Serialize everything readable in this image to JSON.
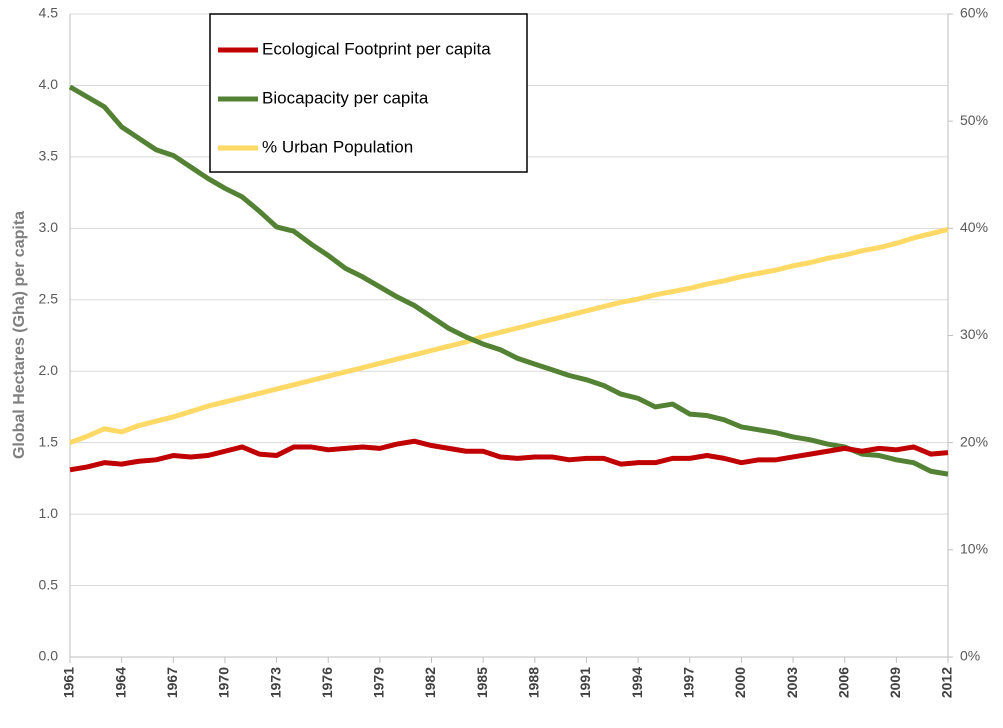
{
  "chart_data": {
    "type": "line",
    "y_label": "Global Hectares (Gha) per capita",
    "x": [
      1961,
      1962,
      1963,
      1964,
      1965,
      1966,
      1967,
      1968,
      1969,
      1970,
      1971,
      1972,
      1973,
      1974,
      1975,
      1976,
      1977,
      1978,
      1979,
      1980,
      1981,
      1982,
      1983,
      1984,
      1985,
      1986,
      1987,
      1988,
      1989,
      1990,
      1991,
      1992,
      1993,
      1994,
      1995,
      1996,
      1997,
      1998,
      1999,
      2000,
      2001,
      2002,
      2003,
      2004,
      2005,
      2006,
      2007,
      2008,
      2009,
      2010,
      2011,
      2012
    ],
    "xlim": [
      1961,
      2012
    ],
    "xticks": [
      1961,
      1964,
      1967,
      1970,
      1973,
      1976,
      1979,
      1982,
      1985,
      1988,
      1991,
      1994,
      1997,
      2000,
      2003,
      2006,
      2009,
      2012
    ],
    "ylim": [
      0,
      4.5
    ],
    "yticks": [
      {
        "value": 0,
        "label": "0.0"
      },
      0.5,
      {
        "value": 1,
        "label": "1.0"
      },
      1.5,
      {
        "value": 2,
        "label": "2.0"
      },
      2.5,
      {
        "value": 3,
        "label": "3.0"
      },
      3.5,
      {
        "value": 4,
        "label": "4.0"
      },
      4.5
    ],
    "y2lim": [
      0,
      60
    ],
    "y2ticks": [
      {
        "value": 0,
        "label": "0%"
      },
      {
        "value": 10,
        "label": "10%"
      },
      {
        "value": 20,
        "label": "20%"
      },
      {
        "value": 30,
        "label": "30%"
      },
      {
        "value": 40,
        "label": "40%"
      },
      {
        "value": 50,
        "label": "50%"
      },
      {
        "value": 60,
        "label": "60%"
      }
    ],
    "grid": true,
    "legend": "upper left",
    "series": [
      {
        "name": "Ecological Footprint per capita",
        "color": "#c00000",
        "values": [
          1.31,
          1.33,
          1.36,
          1.35,
          1.37,
          1.38,
          1.41,
          1.4,
          1.41,
          1.44,
          1.47,
          1.42,
          1.41,
          1.47,
          1.47,
          1.45,
          1.46,
          1.47,
          1.46,
          1.49,
          1.51,
          1.48,
          1.46,
          1.44,
          1.44,
          1.4,
          1.39,
          1.4,
          1.4,
          1.38,
          1.39,
          1.39,
          1.35,
          1.36,
          1.36,
          1.39,
          1.39,
          1.41,
          1.39,
          1.36,
          1.38,
          1.38,
          1.4,
          1.42,
          1.44,
          1.46,
          1.44,
          1.46,
          1.45,
          1.47,
          1.42,
          1.43
        ]
      },
      {
        "name": "Biocapacity per capita",
        "color": "#548235",
        "values": [
          3.99,
          3.92,
          3.85,
          3.71,
          3.63,
          3.55,
          3.51,
          3.43,
          3.35,
          3.28,
          3.22,
          3.12,
          3.01,
          2.98,
          2.89,
          2.81,
          2.72,
          2.66,
          2.59,
          2.52,
          2.46,
          2.38,
          2.3,
          2.24,
          2.19,
          2.15,
          2.09,
          2.05,
          2.01,
          1.97,
          1.94,
          1.9,
          1.84,
          1.81,
          1.75,
          1.77,
          1.7,
          1.69,
          1.66,
          1.61,
          1.59,
          1.57,
          1.54,
          1.52,
          1.49,
          1.47,
          1.42,
          1.41,
          1.38,
          1.36,
          1.3,
          1.28
        ]
      },
      {
        "name": "% Urban Population",
        "color": "#ffd966",
        "axis": "y2",
        "values": [
          20.0,
          20.6,
          21.3,
          21.0,
          21.6,
          22.0,
          22.4,
          22.9,
          23.4,
          23.8,
          24.2,
          24.6,
          25.0,
          25.4,
          25.8,
          26.2,
          26.6,
          27.0,
          27.4,
          27.8,
          28.2,
          28.6,
          29.0,
          29.4,
          29.9,
          30.3,
          30.7,
          31.1,
          31.5,
          31.9,
          32.3,
          32.7,
          33.1,
          33.4,
          33.8,
          34.1,
          34.4,
          34.8,
          35.1,
          35.5,
          35.8,
          36.1,
          36.5,
          36.8,
          37.2,
          37.5,
          37.9,
          38.2,
          38.6,
          39.1,
          39.5,
          39.9
        ]
      }
    ]
  }
}
